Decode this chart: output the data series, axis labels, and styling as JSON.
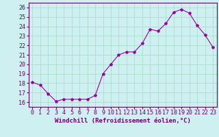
{
  "x": [
    0,
    1,
    2,
    3,
    4,
    5,
    6,
    7,
    8,
    9,
    10,
    11,
    12,
    13,
    14,
    15,
    16,
    17,
    18,
    19,
    20,
    21,
    22,
    23
  ],
  "y": [
    18.1,
    17.8,
    16.9,
    16.1,
    16.3,
    16.3,
    16.3,
    16.3,
    16.7,
    19.0,
    20.0,
    21.0,
    21.3,
    21.3,
    22.2,
    23.7,
    23.5,
    24.3,
    25.5,
    25.8,
    25.4,
    24.1,
    23.1,
    21.8
  ],
  "line_color": "#990099",
  "marker": "*",
  "marker_size": 3,
  "bg_color": "#cff0f0",
  "grid_color": "#aaddcc",
  "xlabel": "Windchill (Refroidissement éolien,°C)",
  "xlabel_fontsize": 6.5,
  "ylabel_ticks": [
    16,
    17,
    18,
    19,
    20,
    21,
    22,
    23,
    24,
    25,
    26
  ],
  "xlim": [
    -0.5,
    23.5
  ],
  "ylim": [
    15.5,
    26.5
  ],
  "tick_fontsize": 6,
  "xtick_labels": [
    "0",
    "1",
    "2",
    "3",
    "4",
    "5",
    "6",
    "7",
    "8",
    "9",
    "10",
    "11",
    "12",
    "13",
    "14",
    "15",
    "16",
    "17",
    "18",
    "19",
    "20",
    "21",
    "22",
    "23"
  ]
}
